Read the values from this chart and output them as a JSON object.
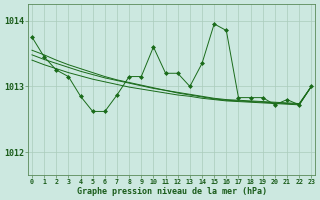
{
  "title": "Graphe pression niveau de la mer (hPa)",
  "bg_color": "#cce8e0",
  "grid_color": "#aaccbb",
  "line_color": "#1a6b1a",
  "x_labels": [
    "0",
    "1",
    "2",
    "3",
    "4",
    "5",
    "6",
    "7",
    "8",
    "9",
    "10",
    "11",
    "12",
    "13",
    "14",
    "15",
    "16",
    "17",
    "18",
    "19",
    "20",
    "21",
    "22",
    "23"
  ],
  "y_ticks": [
    1012,
    1013,
    1014
  ],
  "ylim": [
    1011.65,
    1014.25
  ],
  "xlim": [
    -0.3,
    23.3
  ],
  "jagged_y": [
    1013.75,
    1013.45,
    1013.25,
    1013.15,
    1012.85,
    1012.62,
    1012.62,
    1012.87,
    1013.15,
    1013.15,
    1013.6,
    1013.2,
    1013.2,
    1013.0,
    1013.35,
    1013.95,
    1013.85,
    1012.83,
    1012.83,
    1012.83,
    1012.72,
    1012.8,
    1012.72,
    1013.0
  ],
  "smooth1_y": [
    1013.55,
    1013.48,
    1013.4,
    1013.33,
    1013.27,
    1013.21,
    1013.15,
    1013.1,
    1013.06,
    1013.02,
    1012.98,
    1012.94,
    1012.9,
    1012.87,
    1012.84,
    1012.81,
    1012.79,
    1012.78,
    1012.77,
    1012.76,
    1012.75,
    1012.74,
    1012.73,
    1013.0
  ],
  "smooth2_y": [
    1013.48,
    1013.41,
    1013.35,
    1013.29,
    1013.23,
    1013.18,
    1013.13,
    1013.09,
    1013.05,
    1013.01,
    1012.97,
    1012.94,
    1012.91,
    1012.88,
    1012.85,
    1012.82,
    1012.8,
    1012.79,
    1012.78,
    1012.77,
    1012.76,
    1012.75,
    1012.74,
    1013.0
  ],
  "smooth3_y": [
    1013.4,
    1013.33,
    1013.27,
    1013.21,
    1013.16,
    1013.11,
    1013.07,
    1013.03,
    1012.99,
    1012.96,
    1012.93,
    1012.9,
    1012.87,
    1012.85,
    1012.82,
    1012.8,
    1012.78,
    1012.77,
    1012.76,
    1012.75,
    1012.74,
    1012.73,
    1012.72,
    1013.0
  ]
}
